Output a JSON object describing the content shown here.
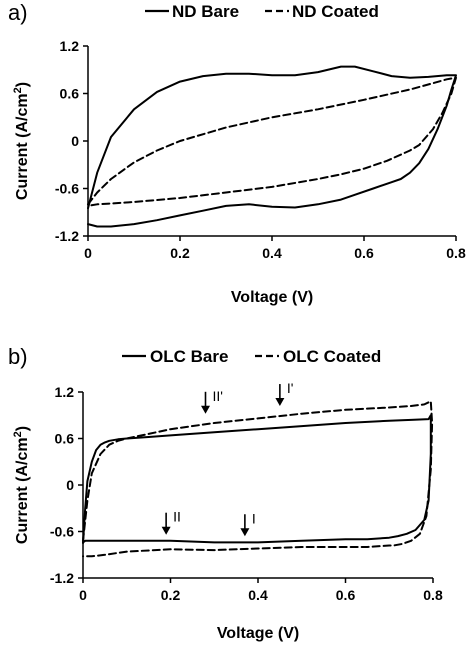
{
  "chart_data": [
    {
      "type": "line",
      "panel_label": "a)",
      "xlabel": "Voltage (V)",
      "ylabel": "Current (A/cm",
      "ylabel_sup": "2",
      "ylabel_close": ")",
      "xlim": [
        0,
        0.8
      ],
      "ylim": [
        -1.2,
        1.2
      ],
      "xticks": [
        "0",
        "0.2",
        "0.4",
        "0.6",
        "0.8"
      ],
      "xtick_values": [
        0,
        0.2,
        0.4,
        0.6,
        0.8
      ],
      "yticks": [
        "1.2",
        "0.6",
        "0",
        "-0.6",
        "-1.2"
      ],
      "ytick_values": [
        1.2,
        0.6,
        0,
        -0.6,
        -1.2
      ],
      "legend_placement": "top",
      "series": [
        {
          "name": "ND Bare",
          "style": "solid",
          "x": [
            0.0,
            0.02,
            0.05,
            0.1,
            0.15,
            0.2,
            0.25,
            0.3,
            0.35,
            0.4,
            0.45,
            0.5,
            0.55,
            0.58,
            0.62,
            0.66,
            0.7,
            0.74,
            0.78,
            0.8,
            0.79,
            0.78,
            0.76,
            0.74,
            0.72,
            0.7,
            0.68,
            0.66,
            0.62,
            0.58,
            0.55,
            0.5,
            0.45,
            0.4,
            0.35,
            0.3,
            0.25,
            0.2,
            0.15,
            0.1,
            0.05,
            0.02,
            0.0
          ],
          "y": [
            -0.85,
            -0.4,
            0.05,
            0.4,
            0.62,
            0.75,
            0.82,
            0.85,
            0.85,
            0.83,
            0.83,
            0.87,
            0.94,
            0.94,
            0.88,
            0.82,
            0.8,
            0.81,
            0.83,
            0.83,
            0.65,
            0.45,
            0.15,
            -0.1,
            -0.28,
            -0.4,
            -0.48,
            -0.52,
            -0.6,
            -0.68,
            -0.74,
            -0.8,
            -0.84,
            -0.83,
            -0.8,
            -0.82,
            -0.88,
            -0.94,
            -1.0,
            -1.05,
            -1.08,
            -1.08,
            -1.05
          ]
        },
        {
          "name": "ND Coated",
          "style": "dashed",
          "x": [
            0.0,
            0.02,
            0.05,
            0.1,
            0.15,
            0.2,
            0.3,
            0.4,
            0.5,
            0.6,
            0.7,
            0.75,
            0.78,
            0.8,
            0.79,
            0.77,
            0.75,
            0.72,
            0.7,
            0.65,
            0.6,
            0.55,
            0.5,
            0.4,
            0.3,
            0.2,
            0.1,
            0.05,
            0.02,
            0.0
          ],
          "y": [
            -0.8,
            -0.65,
            -0.48,
            -0.27,
            -0.12,
            0.0,
            0.17,
            0.3,
            0.4,
            0.52,
            0.65,
            0.73,
            0.78,
            0.8,
            0.6,
            0.35,
            0.15,
            -0.05,
            -0.12,
            -0.25,
            -0.35,
            -0.42,
            -0.48,
            -0.58,
            -0.65,
            -0.72,
            -0.77,
            -0.79,
            -0.8,
            -0.82
          ]
        }
      ]
    },
    {
      "type": "line",
      "panel_label": "b)",
      "xlabel": "Voltage (V)",
      "ylabel": "Current (A/cm",
      "ylabel_sup": "2",
      "ylabel_close": ")",
      "xlim": [
        0,
        0.8
      ],
      "ylim": [
        -1.2,
        1.2
      ],
      "xticks": [
        "0",
        "0.2",
        "0.4",
        "0.6",
        "0.8"
      ],
      "xtick_values": [
        0,
        0.2,
        0.4,
        0.6,
        0.8
      ],
      "yticks": [
        "1.2",
        "0.6",
        "0",
        "-0.6",
        "-1.2"
      ],
      "ytick_values": [
        1.2,
        0.6,
        0,
        -0.6,
        -1.2
      ],
      "legend_placement": "top",
      "series": [
        {
          "name": "OLC Bare",
          "style": "solid",
          "x": [
            0.0,
            0.005,
            0.01,
            0.02,
            0.03,
            0.04,
            0.05,
            0.06,
            0.08,
            0.1,
            0.15,
            0.2,
            0.3,
            0.4,
            0.5,
            0.6,
            0.7,
            0.75,
            0.79,
            0.795,
            0.795,
            0.79,
            0.78,
            0.76,
            0.74,
            0.72,
            0.7,
            0.65,
            0.6,
            0.5,
            0.4,
            0.3,
            0.2,
            0.1,
            0.05,
            0.02,
            0.005,
            0.0
          ],
          "y": [
            -0.75,
            -0.3,
            0.05,
            0.3,
            0.45,
            0.52,
            0.55,
            0.57,
            0.59,
            0.6,
            0.62,
            0.64,
            0.68,
            0.72,
            0.76,
            0.8,
            0.83,
            0.84,
            0.85,
            0.9,
            0.4,
            -0.2,
            -0.45,
            -0.58,
            -0.63,
            -0.66,
            -0.68,
            -0.7,
            -0.7,
            -0.72,
            -0.74,
            -0.74,
            -0.72,
            -0.72,
            -0.72,
            -0.72,
            -0.72,
            -0.74
          ]
        },
        {
          "name": "OLC Coated",
          "style": "dashed",
          "x": [
            0.0,
            0.01,
            0.02,
            0.04,
            0.06,
            0.08,
            0.1,
            0.15,
            0.2,
            0.3,
            0.4,
            0.5,
            0.6,
            0.7,
            0.75,
            0.78,
            0.795,
            0.798,
            0.795,
            0.785,
            0.77,
            0.75,
            0.73,
            0.71,
            0.7,
            0.65,
            0.6,
            0.5,
            0.4,
            0.3,
            0.2,
            0.1,
            0.05,
            0.02,
            0.0
          ],
          "y": [
            -0.72,
            -0.2,
            0.15,
            0.4,
            0.52,
            0.57,
            0.6,
            0.66,
            0.72,
            0.8,
            0.86,
            0.92,
            0.97,
            1.0,
            1.02,
            1.04,
            1.08,
            0.8,
            0.2,
            -0.4,
            -0.63,
            -0.72,
            -0.76,
            -0.78,
            -0.78,
            -0.8,
            -0.8,
            -0.8,
            -0.82,
            -0.84,
            -0.83,
            -0.86,
            -0.9,
            -0.92,
            -0.92
          ]
        }
      ],
      "annotations": [
        {
          "text": "II'",
          "x": 0.28,
          "y": 0.88
        },
        {
          "text": "I'",
          "x": 0.45,
          "y": 0.98
        },
        {
          "text": "II",
          "x": 0.19,
          "y": -0.68
        },
        {
          "text": "I",
          "x": 0.37,
          "y": -0.7
        }
      ]
    }
  ]
}
